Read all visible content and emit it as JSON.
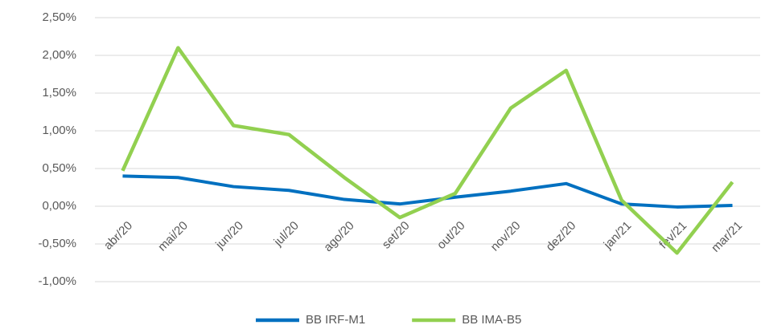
{
  "chart_data": {
    "type": "line",
    "categories": [
      "abr/20",
      "mai/20",
      "jun/20",
      "jul/20",
      "ago/20",
      "set/20",
      "out/20",
      "nov/20",
      "dez/20",
      "jan/21",
      "fev/21",
      "mar/21"
    ],
    "series": [
      {
        "name": "BB IRF-M1",
        "color": "#0070c0",
        "values": [
          0.4,
          0.38,
          0.26,
          0.21,
          0.09,
          0.03,
          0.12,
          0.2,
          0.3,
          0.03,
          -0.01,
          0.01
        ]
      },
      {
        "name": "BB IMA-B5",
        "color": "#92d050",
        "values": [
          0.47,
          2.1,
          1.07,
          0.95,
          0.38,
          -0.15,
          0.17,
          1.3,
          1.8,
          0.08,
          -0.62,
          0.32
        ]
      }
    ],
    "ylim": [
      -1.0,
      2.5
    ],
    "yticks": [
      {
        "value": -1.0,
        "label": "-1,00%"
      },
      {
        "value": -0.5,
        "label": "-0,50%"
      },
      {
        "value": 0,
        "label": "0,00%"
      },
      {
        "value": 0.5,
        "label": "0,50%"
      },
      {
        "value": 1.0,
        "label": "1,00%"
      },
      {
        "value": 1.5,
        "label": "1,50%"
      },
      {
        "value": 2.0,
        "label": "2,00%"
      },
      {
        "value": 2.5,
        "label": "2,50%"
      }
    ],
    "grid": true,
    "legend": "bottom"
  }
}
